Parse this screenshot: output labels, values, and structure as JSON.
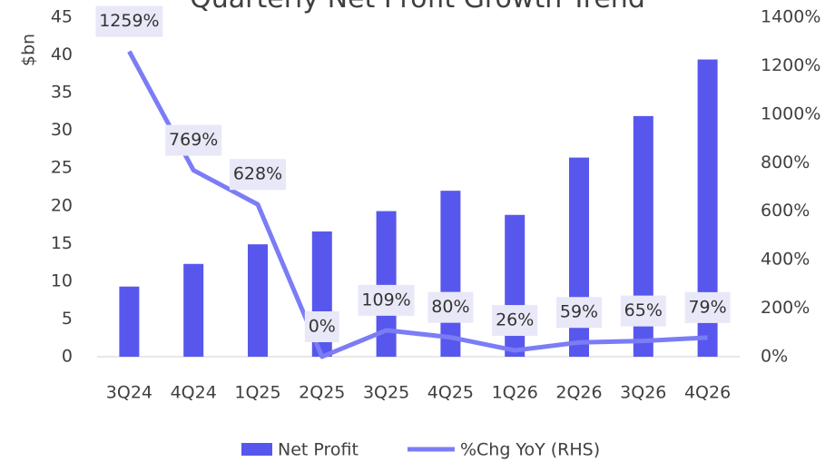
{
  "chart_data": {
    "type": "bar-line",
    "title": "Quarterly Net Profit Growth Trend",
    "ylabel": "$bn",
    "categories": [
      "3Q24",
      "4Q24",
      "1Q25",
      "2Q25",
      "3Q25",
      "4Q25",
      "1Q26",
      "2Q26",
      "3Q26",
      "4Q26"
    ],
    "series": [
      {
        "name": "Net Profit",
        "color": "#5757ee",
        "type": "bar",
        "values": [
          9.3,
          12.3,
          14.9,
          16.6,
          19.3,
          22.0,
          18.8,
          26.4,
          31.9,
          39.4
        ]
      },
      {
        "name": "%Chg YoY (RHS)",
        "color": "#7b7cf6",
        "type": "line",
        "axis": "y2",
        "values": [
          1259,
          769,
          628,
          0,
          109,
          80,
          26,
          59,
          65,
          79
        ],
        "value_labels": [
          "1259%",
          "769%",
          "628%",
          "0%",
          "109%",
          "80%",
          "26%",
          "59%",
          "65%",
          "79%"
        ]
      }
    ],
    "ylim": [
      0,
      45
    ],
    "yticks": [
      0,
      5,
      10,
      15,
      20,
      25,
      30,
      35,
      40,
      45
    ],
    "y2lim": [
      0,
      1400
    ],
    "y2ticks": [
      {
        "value": 0,
        "label": "0%"
      },
      {
        "value": 200,
        "label": "200%"
      },
      {
        "value": 400,
        "label": "400%"
      },
      {
        "value": 600,
        "label": "600%"
      },
      {
        "value": 800,
        "label": "800%"
      },
      {
        "value": 1000,
        "label": "1000%"
      },
      {
        "value": 1200,
        "label": "1200%"
      },
      {
        "value": 1400,
        "label": "1400%"
      }
    ],
    "grid": false,
    "legend": "bottom"
  }
}
